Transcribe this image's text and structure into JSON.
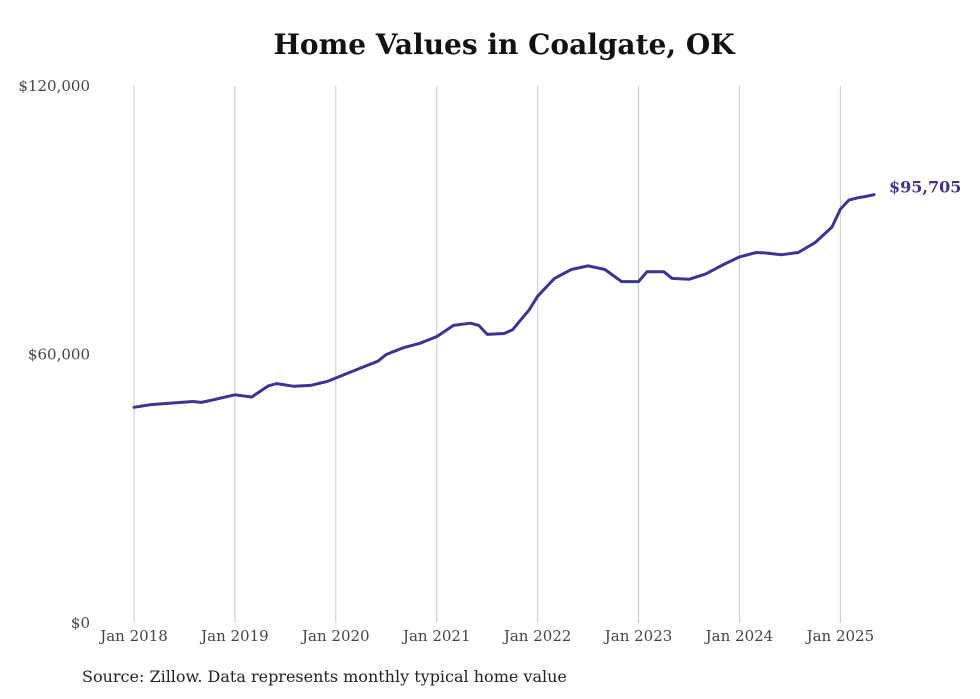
{
  "chart_data": {
    "type": "line",
    "title": "Home Values in Coalgate, OK",
    "source_note": "Source: Zillow. Data represents monthly typical home value",
    "xlabel": "",
    "ylabel": "",
    "ylim": [
      0,
      120000
    ],
    "xlim": [
      "2018-01",
      "2025-05"
    ],
    "y_ticks": [
      {
        "value": 0,
        "label": "$0"
      },
      {
        "value": 60000,
        "label": "$60,000"
      },
      {
        "value": 120000,
        "label": "$120,000"
      }
    ],
    "x_ticks": [
      {
        "value": "2018-01",
        "label": "Jan 2018"
      },
      {
        "value": "2019-01",
        "label": "Jan 2019"
      },
      {
        "value": "2020-01",
        "label": "Jan 2020"
      },
      {
        "value": "2021-01",
        "label": "Jan 2021"
      },
      {
        "value": "2022-01",
        "label": "Jan 2022"
      },
      {
        "value": "2023-01",
        "label": "Jan 2023"
      },
      {
        "value": "2024-01",
        "label": "Jan 2024"
      },
      {
        "value": "2025-01",
        "label": "Jan 2025"
      }
    ],
    "grid": "vertical",
    "line_color": "#3d3590",
    "end_label": "$95,705",
    "series": [
      {
        "x": [
          "2018-01",
          "2018-03",
          "2018-06",
          "2018-08",
          "2018-09",
          "2018-10",
          "2019-01",
          "2019-03",
          "2019-05",
          "2019-06",
          "2019-08",
          "2019-10",
          "2019-12",
          "2020-02",
          "2020-04",
          "2020-06",
          "2020-07",
          "2020-09",
          "2020-11",
          "2021-01",
          "2021-03",
          "2021-05",
          "2021-06",
          "2021-07",
          "2021-09",
          "2021-10",
          "2021-12",
          "2022-01",
          "2022-03",
          "2022-05",
          "2022-07",
          "2022-09",
          "2022-11",
          "2023-01",
          "2023-02",
          "2023-04",
          "2023-05",
          "2023-07",
          "2023-09",
          "2023-11",
          "2024-01",
          "2024-03",
          "2024-04",
          "2024-06",
          "2024-08",
          "2024-10",
          "2024-12",
          "2025-01",
          "2025-02",
          "2025-03",
          "2025-04",
          "2025-05"
        ],
        "values": [
          48200,
          48800,
          49200,
          49500,
          49300,
          49700,
          51000,
          50500,
          53000,
          53500,
          52900,
          53100,
          54000,
          55500,
          57000,
          58500,
          60000,
          61500,
          62500,
          64000,
          66500,
          67000,
          66500,
          64500,
          64700,
          65500,
          70000,
          73000,
          77000,
          79000,
          79800,
          79000,
          76300,
          76300,
          78500,
          78500,
          77000,
          76800,
          78000,
          80000,
          81800,
          82800,
          82700,
          82300,
          82800,
          85000,
          88500,
          92500,
          94500,
          95000,
          95300,
          95705
        ]
      }
    ]
  }
}
